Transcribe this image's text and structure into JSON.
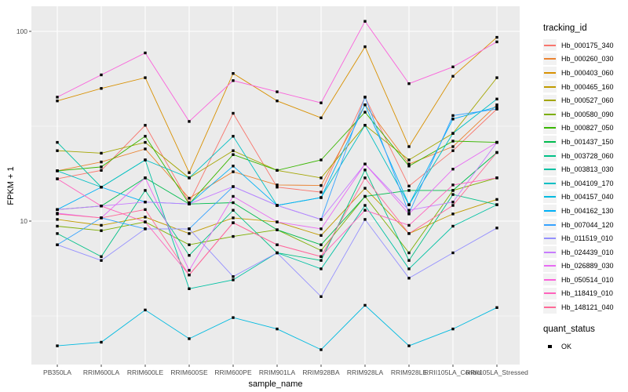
{
  "figure": {
    "xlabel": "sample_name",
    "ylabel": "FPKM + 1"
  },
  "legend": {
    "tracking_title": "tracking_id",
    "quant_title": "quant_status",
    "quant_items": [
      {
        "label": "OK",
        "marker": "filled-black-square"
      }
    ]
  },
  "chart_data": {
    "type": "line",
    "x_type": "categorical",
    "yscale": "log10",
    "ylim": [
      1.75,
      135
    ],
    "y_major_ticks": [
      100,
      10
    ],
    "y_tick_labels": [
      "100",
      "10"
    ],
    "y_minor_ticks": [
      31.623,
      3.1623
    ],
    "grid": "major-and-minor-white-on-grey-panel",
    "panel_bg": "#EBEBEB",
    "legend_position": "right",
    "point_marker": "filled-square-black",
    "xlabel": "sample_name",
    "ylabel": "FPKM + 1",
    "title": "",
    "categories": [
      "PB350LA",
      "RRIM600LA",
      "RRIM600LE",
      "RRIM600SE",
      "RRIM600PE",
      "RRIM901LA",
      "RRIM928BA",
      "RRIM928LA",
      "RRIM928LE",
      "RRII105LA_Control",
      "RRII105LA_Stressed"
    ],
    "series": [
      {
        "name": "Hb_000175_340",
        "color": "#F8766D",
        "values": [
          16.7,
          18.5,
          32,
          12.5,
          37,
          15.1,
          14.2,
          45,
          15.3,
          23.5,
          39
        ]
      },
      {
        "name": "Hb_000260_030",
        "color": "#EA8331",
        "values": [
          18.4,
          20.5,
          24,
          13.2,
          18.2,
          15.5,
          15.4,
          41,
          20,
          24.7,
          41
        ]
      },
      {
        "name": "Hb_000403_060",
        "color": "#D89000",
        "values": [
          43,
          50,
          57,
          18,
          60,
          43,
          35,
          83,
          24.7,
          58,
          93
        ]
      },
      {
        "name": "Hb_000465_160",
        "color": "#C09B00",
        "values": [
          10.2,
          9.5,
          10.5,
          8.6,
          10.4,
          9.9,
          8.4,
          14.9,
          8.6,
          10.9,
          13
        ]
      },
      {
        "name": "Hb_000527_060",
        "color": "#A3A500",
        "values": [
          23.5,
          22.8,
          26,
          16.9,
          23.5,
          18.5,
          16.9,
          32,
          21,
          29,
          57
        ]
      },
      {
        "name": "Hb_000580_090",
        "color": "#7CAE00",
        "values": [
          9.4,
          8.9,
          9.9,
          7.5,
          8.3,
          9.0,
          7.0,
          13.5,
          6.8,
          14.5,
          16.9
        ]
      },
      {
        "name": "Hb_000827_050",
        "color": "#39B600",
        "values": [
          18.4,
          19.3,
          28,
          12.3,
          22.4,
          18.5,
          21,
          37.5,
          19.5,
          26.4,
          26
        ]
      },
      {
        "name": "Hb_001437_150",
        "color": "#00BB4E",
        "values": [
          11.5,
          12,
          16.9,
          12.3,
          12.5,
          9.0,
          7.5,
          13.5,
          14.5,
          14.5,
          23
        ]
      },
      {
        "name": "Hb_003728_060",
        "color": "#00C087",
        "values": [
          8.6,
          6.5,
          14.5,
          6.6,
          11.4,
          6.8,
          6.2,
          18.6,
          6.2,
          13.8,
          12.2
        ]
      },
      {
        "name": "Hb_003813_030",
        "color": "#00C1A3",
        "values": [
          26,
          15.1,
          21,
          4.4,
          4.9,
          6.8,
          5.6,
          12.1,
          5.6,
          9.4,
          12.2
        ]
      },
      {
        "name": "Hb_004109_170",
        "color": "#00BFC4",
        "values": [
          18.4,
          15.1,
          21,
          16.9,
          28,
          12.1,
          13.3,
          32,
          12.2,
          29,
          44
        ]
      },
      {
        "name": "Hb_004157_040",
        "color": "#00BAE0",
        "values": [
          2.2,
          2.3,
          3.4,
          2.4,
          3.1,
          2.7,
          2.1,
          3.6,
          2.2,
          2.7,
          3.5
        ]
      },
      {
        "name": "Hb_004162_130",
        "color": "#00B0F6",
        "values": [
          11.5,
          15.1,
          12.6,
          12.3,
          19.5,
          12.1,
          13.3,
          41,
          12.2,
          34.5,
          40
        ]
      },
      {
        "name": "Hb_007044_120",
        "color": "#35A2FF",
        "values": [
          7.5,
          10.4,
          9.1,
          9.1,
          15.2,
          12.1,
          10.2,
          45,
          11.0,
          36,
          39
        ]
      },
      {
        "name": "Hb_011519_010",
        "color": "#9590FF",
        "values": [
          7.5,
          6.2,
          9.1,
          9.1,
          5.1,
          6.8,
          4.0,
          10.2,
          5.0,
          6.8,
          9.2
        ]
      },
      {
        "name": "Hb_024439_010",
        "color": "#C77CFF",
        "values": [
          11.5,
          12,
          12.6,
          12.3,
          15.2,
          12.1,
          10.2,
          20,
          11.4,
          12.6,
          26
        ]
      },
      {
        "name": "Hb_026889_030",
        "color": "#E76BF3",
        "values": [
          11.0,
          10.4,
          16.9,
          5.5,
          13.5,
          9.9,
          9.1,
          20,
          10.9,
          18.8,
          26
        ]
      },
      {
        "name": "Hb_050514_010",
        "color": "#FA62DB",
        "values": [
          45,
          59,
          77,
          33.5,
          55,
          48,
          42,
          113,
          53,
          65,
          88
        ]
      },
      {
        "name": "Hb_118419_010",
        "color": "#FF62BC",
        "values": [
          16.7,
          12,
          9.9,
          5.2,
          9.8,
          7.5,
          6.5,
          11.4,
          9.5,
          15.5,
          16.9
        ]
      },
      {
        "name": "Hb_148121_040",
        "color": "#FF6A98",
        "values": [
          10.9,
          10.4,
          11.5,
          5.2,
          9.8,
          7.5,
          6.5,
          16.9,
          8.6,
          12.1,
          23
        ]
      }
    ]
  }
}
